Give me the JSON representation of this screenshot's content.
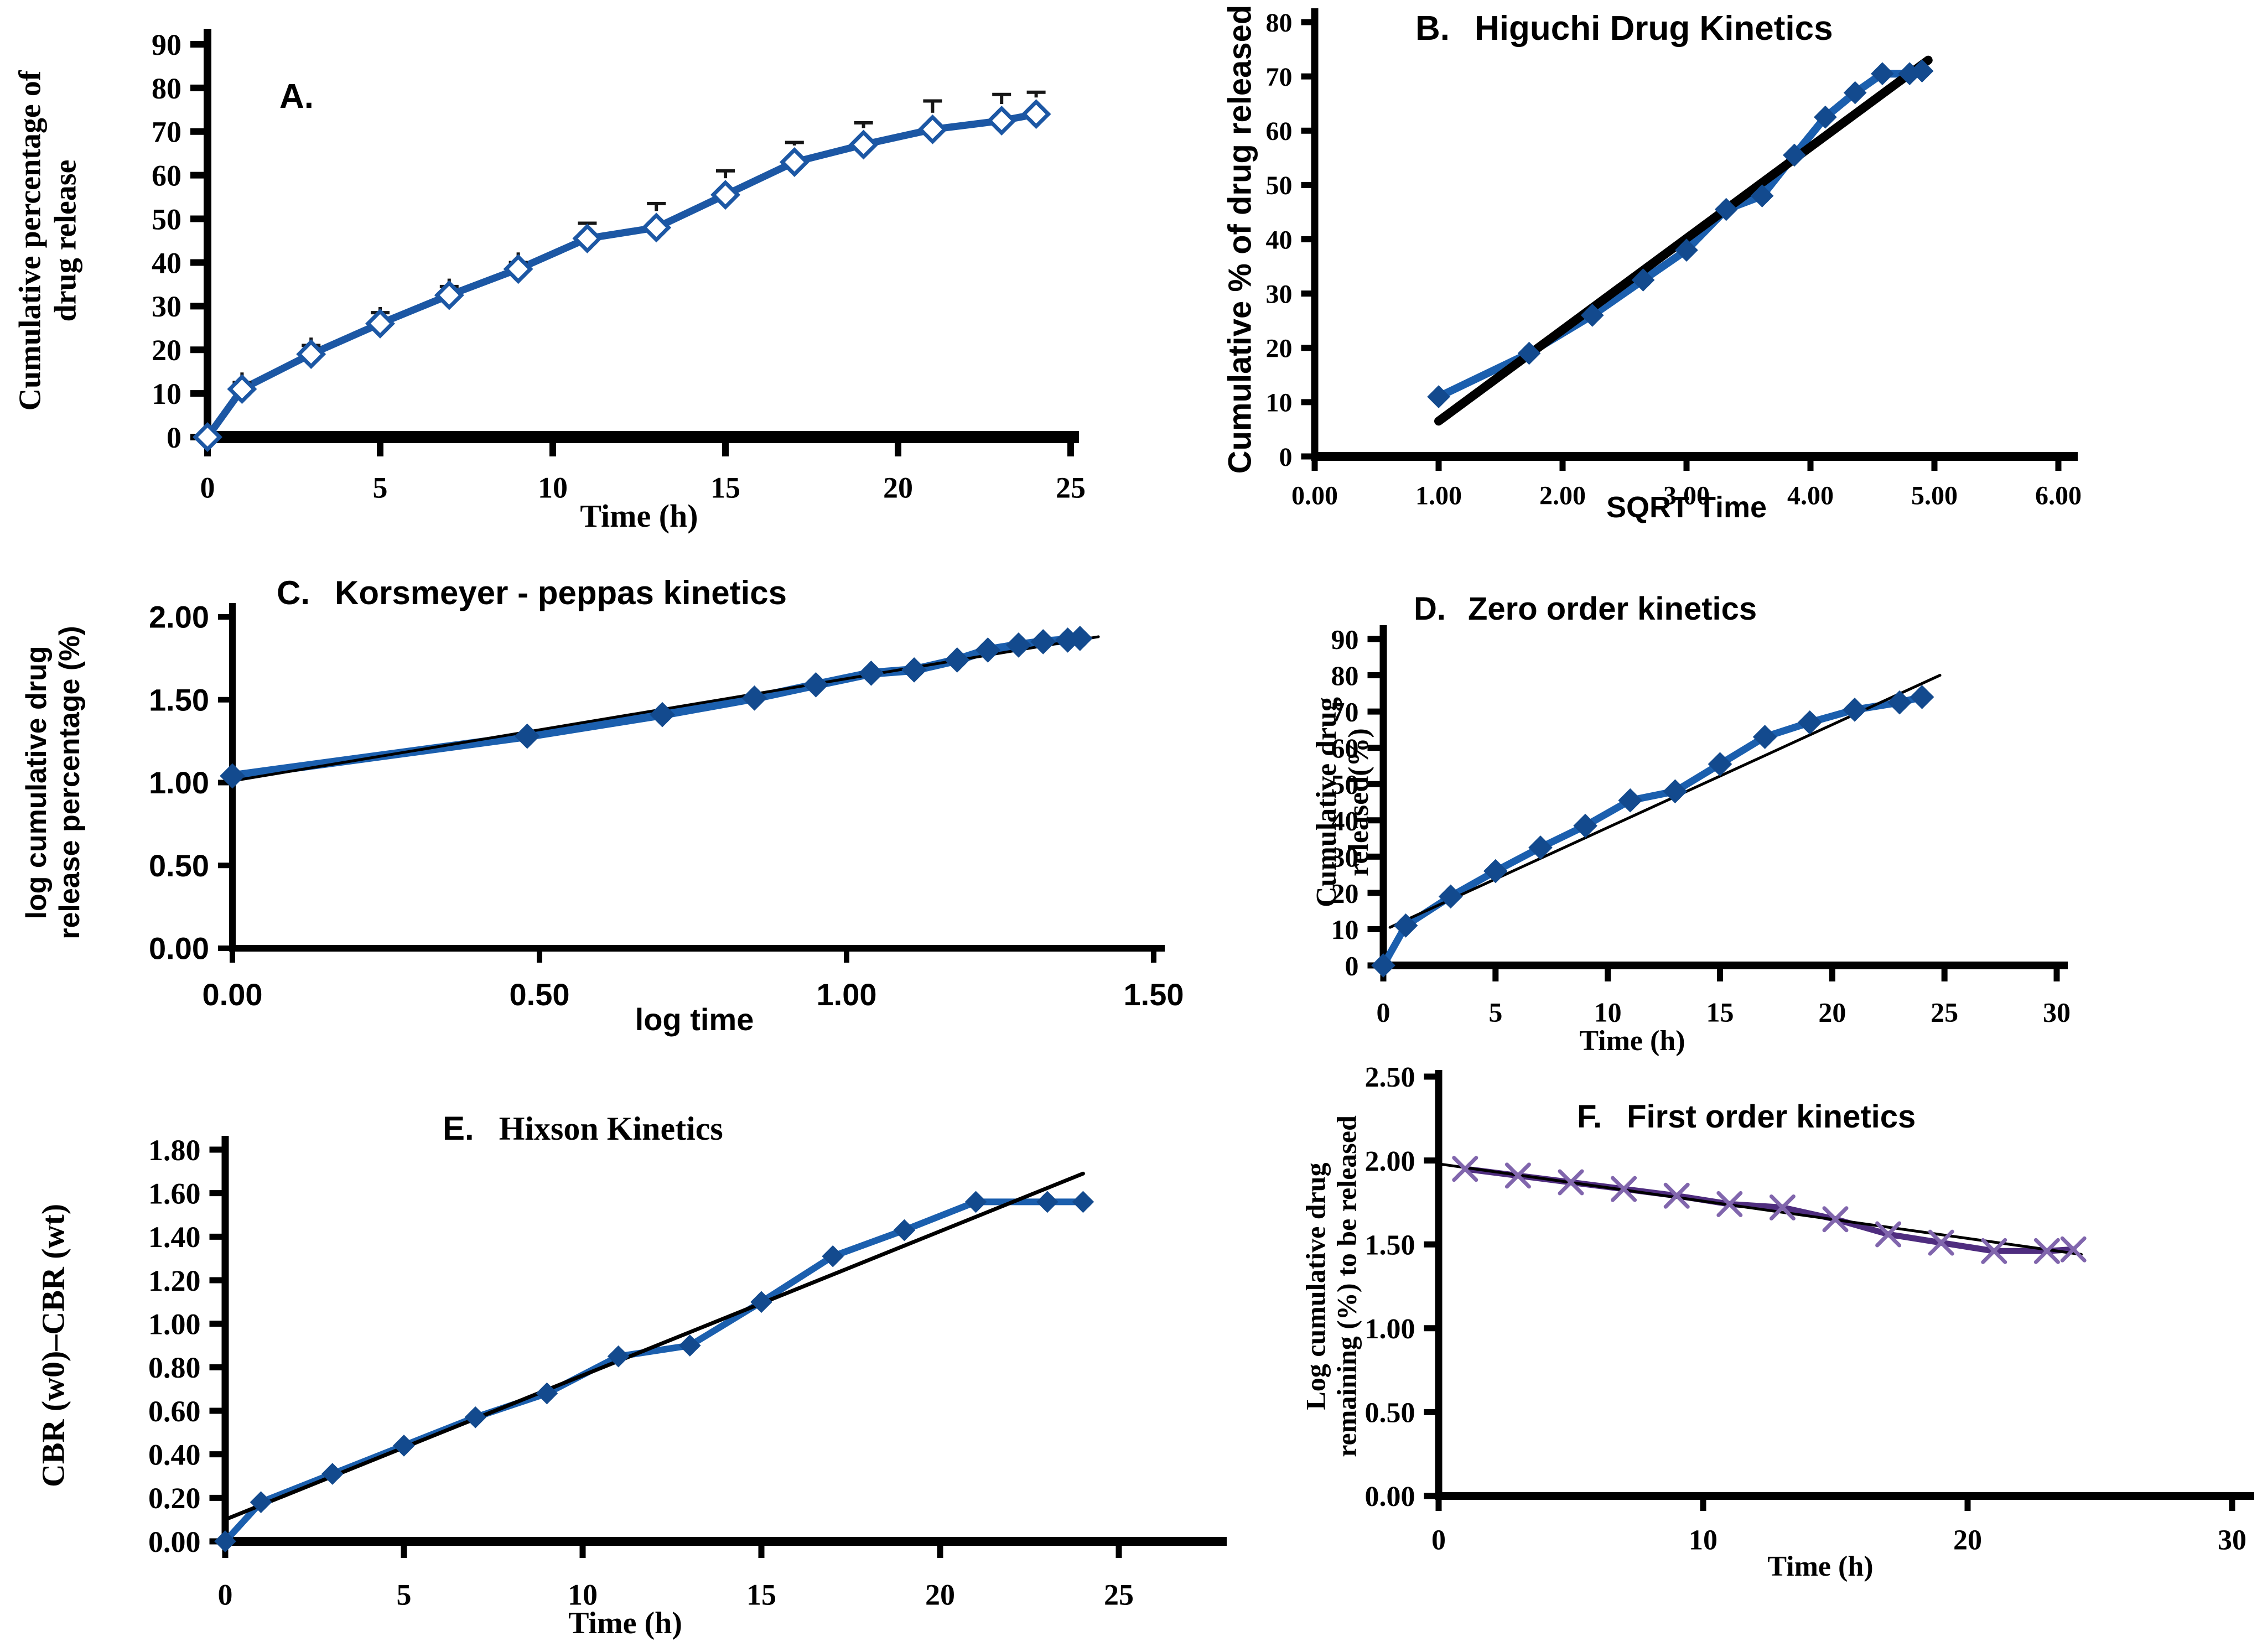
{
  "page": {
    "background": "#ffffff",
    "figure_description": "Drug release kinetics panels A-F"
  },
  "chart_data": [
    {
      "panel_label": "A.",
      "title": "",
      "type": "line",
      "xlabel": "Time (h)",
      "ylabel_lines": [
        "Cumulative percentage of",
        "drug release"
      ],
      "xlim": [
        0,
        25
      ],
      "ylim": [
        0,
        90
      ],
      "x_tick_values": [
        0,
        5,
        10,
        15,
        20,
        25
      ],
      "x_tick_labels": [
        "0",
        "5",
        "10",
        "15",
        "20",
        "25"
      ],
      "y_tick_values": [
        0,
        10,
        20,
        30,
        40,
        50,
        60,
        70,
        80,
        90
      ],
      "y_tick_labels": [
        "0",
        "10",
        "20",
        "30",
        "40",
        "50",
        "60",
        "70",
        "80",
        "90"
      ],
      "grid": false,
      "legend": "none",
      "series": [
        {
          "name": "cumulative percentage of drug release",
          "marker": "diamond-open",
          "line_color": "#1c57a4",
          "marker_color": "#1c57a4",
          "error_color": "#161616",
          "x": [
            0,
            1,
            3,
            5,
            7,
            9,
            11,
            13,
            15,
            17,
            19,
            21,
            23,
            24
          ],
          "y": [
            0,
            11,
            19,
            26,
            32.5,
            38.5,
            45.5,
            48,
            55.5,
            63,
            67,
            70.5,
            72.5,
            74
          ],
          "error_up": [
            0,
            1.5,
            2,
            2.5,
            2,
            1.5,
            3.5,
            5.5,
            5.5,
            4.5,
            5,
            6.5,
            6,
            5
          ]
        }
      ],
      "trendline": null
    },
    {
      "panel_label": "B.",
      "title": "Higuchi Drug Kinetics",
      "type": "line",
      "xlabel": "SQRT Time",
      "ylabel_lines": [
        "Cumulative % of drug released"
      ],
      "xlim": [
        0,
        6
      ],
      "ylim": [
        0,
        80
      ],
      "x_tick_values": [
        0,
        1,
        2,
        3,
        4,
        5,
        6
      ],
      "x_tick_labels": [
        "0.00",
        "1.00",
        "2.00",
        "3.00",
        "4.00",
        "5.00",
        "6.00"
      ],
      "y_tick_values": [
        0,
        10,
        20,
        30,
        40,
        50,
        60,
        70,
        80
      ],
      "y_tick_labels": [
        "0",
        "10",
        "20",
        "30",
        "40",
        "50",
        "60",
        "70",
        "80"
      ],
      "grid": false,
      "legend": "none",
      "series": [
        {
          "name": "cumulative % of drug released",
          "marker": "diamond",
          "line_color": "#1b5fae",
          "marker_color": "#134a8e",
          "x": [
            1,
            1.73,
            2.24,
            2.65,
            3,
            3.32,
            3.61,
            3.87,
            4.12,
            4.36,
            4.58,
            4.8,
            4.9
          ],
          "y": [
            11,
            19,
            26,
            32.5,
            38,
            45.5,
            48,
            55.5,
            62.5,
            67,
            70.5,
            70.5,
            71
          ]
        }
      ],
      "trendline": {
        "x1": 1.0,
        "y1": 6.5,
        "x2": 4.95,
        "y2": 73,
        "color": "#000000"
      }
    },
    {
      "panel_label": "C.",
      "title": "Korsmeyer - peppas kinetics",
      "type": "line",
      "xlabel": "log time",
      "ylabel_lines": [
        "log cumulative drug",
        "release percentage (%)"
      ],
      "xlim": [
        0,
        1.5
      ],
      "ylim": [
        0,
        2
      ],
      "x_tick_values": [
        0,
        0.5,
        1.0,
        1.5
      ],
      "x_tick_labels": [
        "0.00",
        "0.50",
        "1.00",
        "1.50"
      ],
      "y_tick_values": [
        0,
        0.5,
        1.0,
        1.5,
        2.0
      ],
      "y_tick_labels": [
        "0.00",
        "0.50",
        "1.00",
        "1.50",
        "2.00"
      ],
      "grid": false,
      "legend": "none",
      "series": [
        {
          "name": "log cumulative drug release percentage",
          "marker": "diamond",
          "line_color": "#1b5fae",
          "marker_color": "#134a8e",
          "x": [
            0,
            0.48,
            0.7,
            0.85,
            0.95,
            1.04,
            1.11,
            1.18,
            1.23,
            1.28,
            1.32,
            1.36,
            1.38
          ],
          "y": [
            1.04,
            1.28,
            1.41,
            1.51,
            1.59,
            1.66,
            1.68,
            1.74,
            1.8,
            1.83,
            1.85,
            1.86,
            1.87
          ]
        }
      ],
      "trendline": {
        "x1": 0,
        "y1": 1.01,
        "x2": 1.41,
        "y2": 1.88,
        "color": "#000000"
      }
    },
    {
      "panel_label": "D.",
      "title": "Zero order kinetics",
      "type": "line",
      "xlabel": "Time (h)",
      "ylabel_lines": [
        "Cumulative drug",
        "released(%)"
      ],
      "xlim": [
        0,
        30
      ],
      "ylim": [
        0,
        90
      ],
      "x_tick_values": [
        0,
        5,
        10,
        15,
        20,
        25,
        30
      ],
      "x_tick_labels": [
        "0",
        "5",
        "10",
        "15",
        "20",
        "25",
        "30"
      ],
      "y_tick_values": [
        0,
        10,
        20,
        30,
        40,
        50,
        60,
        70,
        80,
        90
      ],
      "y_tick_labels": [
        "0",
        "10",
        "20",
        "30",
        "40",
        "50",
        "60",
        "70",
        "80",
        "90"
      ],
      "grid": false,
      "legend": "none",
      "series": [
        {
          "name": "cumulative drug released",
          "marker": "diamond",
          "line_color": "#1b5fae",
          "marker_color": "#134a8e",
          "x": [
            0,
            1,
            3,
            5,
            7,
            9,
            11,
            13,
            15,
            17,
            19,
            21,
            23,
            24
          ],
          "y": [
            0,
            11,
            19,
            26,
            32.5,
            38.5,
            45.5,
            48,
            55.5,
            63,
            67,
            70.5,
            72.5,
            74
          ]
        }
      ],
      "trendline": {
        "x1": 0.3,
        "y1": 10.5,
        "x2": 24.8,
        "y2": 80,
        "color": "#000000"
      }
    },
    {
      "panel_label": "E.",
      "title": "Hixson Kinetics",
      "type": "line",
      "xlabel": "Time (h)",
      "ylabel_lines": [
        "CBR (w0)–CBR (wt)"
      ],
      "xlim": [
        0,
        25
      ],
      "ylim": [
        0,
        1.8
      ],
      "x_tick_values": [
        0,
        5,
        10,
        15,
        20,
        25
      ],
      "x_tick_labels": [
        "0",
        "5",
        "10",
        "15",
        "20",
        "25"
      ],
      "y_tick_values": [
        0,
        0.2,
        0.4,
        0.6,
        0.8,
        1.0,
        1.2,
        1.4,
        1.6,
        1.8
      ],
      "y_tick_labels": [
        "0.00",
        "0.20",
        "0.40",
        "0.60",
        "0.80",
        "1.00",
        "1.20",
        "1.40",
        "1.60",
        "1.80"
      ],
      "grid": false,
      "legend": "none",
      "series": [
        {
          "name": "CBR(w0)-CBR(wt)",
          "marker": "diamond",
          "line_color": "#1b5fae",
          "marker_color": "#134a8e",
          "x": [
            0,
            1,
            3,
            5,
            7,
            9,
            11,
            13,
            15,
            17,
            19,
            21,
            23,
            24
          ],
          "y": [
            0,
            0.18,
            0.31,
            0.44,
            0.57,
            0.68,
            0.85,
            0.9,
            1.1,
            1.31,
            1.43,
            1.56,
            1.56,
            1.56
          ]
        }
      ],
      "trendline": {
        "x1": 0,
        "y1": 0.1,
        "x2": 24.0,
        "y2": 1.69,
        "color": "#000000"
      }
    },
    {
      "panel_label": "F.",
      "title": "First order kinetics",
      "type": "line",
      "xlabel": "Time (h)",
      "ylabel_lines": [
        "Log cumulative drug",
        "remaining (%) to be released"
      ],
      "xlim": [
        0,
        30
      ],
      "ylim": [
        0,
        2.5
      ],
      "x_tick_values": [
        0,
        10,
        20,
        30
      ],
      "x_tick_labels": [
        "0",
        "10",
        "20",
        "30"
      ],
      "y_tick_values": [
        0,
        0.5,
        1.0,
        1.5,
        2.0,
        2.5
      ],
      "y_tick_labels": [
        "0.00",
        "0.50",
        "1.00",
        "1.50",
        "2.00",
        "2.50"
      ],
      "grid": false,
      "legend": "none",
      "series": [
        {
          "name": "log cumulative drug remaining to be released",
          "marker": "x",
          "line_color": "#4f2d7f",
          "marker_color": "#8166ad",
          "x": [
            1,
            3,
            5,
            7,
            9,
            11,
            13,
            15,
            17,
            19,
            21,
            23,
            24
          ],
          "y": [
            1.95,
            1.91,
            1.87,
            1.83,
            1.79,
            1.74,
            1.72,
            1.65,
            1.56,
            1.51,
            1.46,
            1.46,
            1.47
          ]
        }
      ],
      "trendline": {
        "x1": 0,
        "y1": 1.98,
        "x2": 24.3,
        "y2": 1.44,
        "color": "#000000"
      }
    }
  ]
}
